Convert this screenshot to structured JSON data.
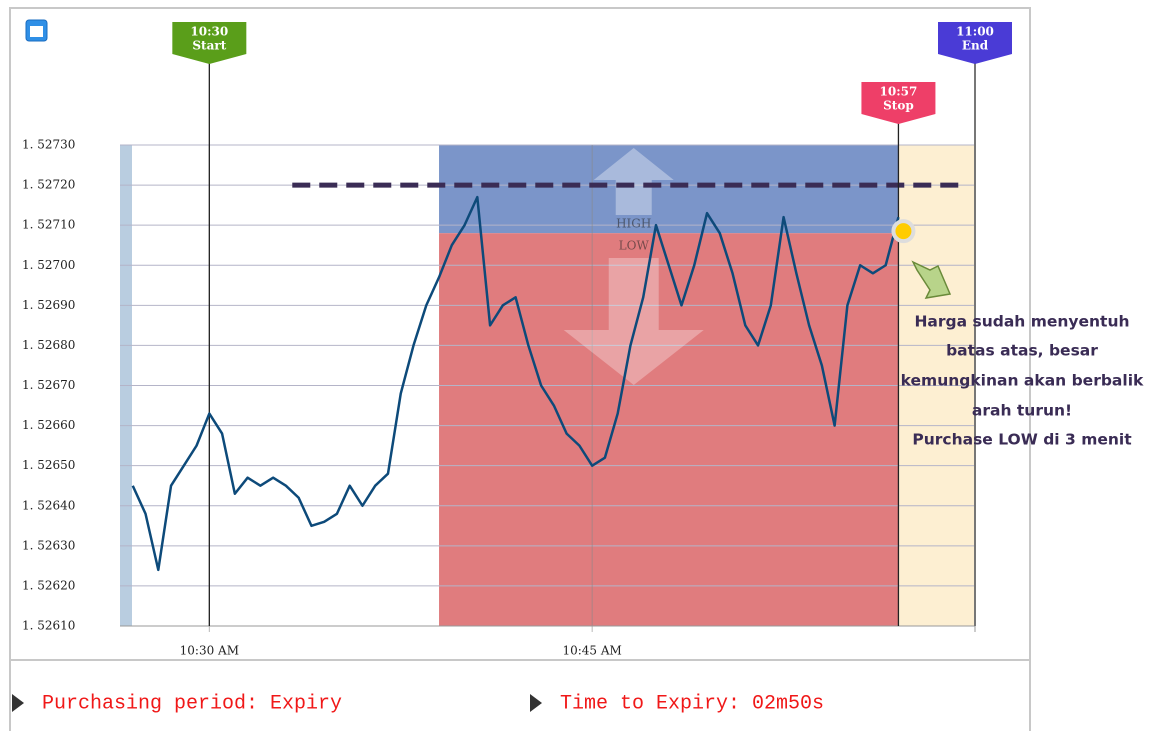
{
  "chart_data": {
    "type": "line",
    "x": [
      "10:27:00",
      "10:27:30",
      "10:28:00",
      "10:28:30",
      "10:29:00",
      "10:29:30",
      "10:30:00",
      "10:30:30",
      "10:31:00",
      "10:31:30",
      "10:32:00",
      "10:32:30",
      "10:33:00",
      "10:33:30",
      "10:34:00",
      "10:34:30",
      "10:35:00",
      "10:35:30",
      "10:36:00",
      "10:36:30",
      "10:37:00",
      "10:37:30",
      "10:38:00",
      "10:38:30",
      "10:39:00",
      "10:39:30",
      "10:40:00",
      "10:40:30",
      "10:41:00",
      "10:41:30",
      "10:42:00",
      "10:42:30",
      "10:43:00",
      "10:43:30",
      "10:44:00",
      "10:44:30",
      "10:45:00",
      "10:45:30",
      "10:46:00",
      "10:46:30",
      "10:47:00",
      "10:47:30",
      "10:48:00",
      "10:48:30",
      "10:49:00",
      "10:49:30",
      "10:50:00",
      "10:50:30",
      "10:51:00",
      "10:51:30",
      "10:52:00",
      "10:52:30",
      "10:53:00",
      "10:53:30",
      "10:54:00",
      "10:54:30",
      "10:55:00",
      "10:55:30",
      "10:56:00",
      "10:56:30",
      "10:57:00"
    ],
    "series": [
      {
        "color": "#0d4a7a",
        "values": [
          1.52645,
          1.52638,
          1.52624,
          1.52645,
          1.5265,
          1.52655,
          1.52663,
          1.52658,
          1.52643,
          1.52647,
          1.52645,
          1.52647,
          1.52645,
          1.52642,
          1.52635,
          1.52636,
          1.52638,
          1.52645,
          1.5264,
          1.52645,
          1.52648,
          1.52668,
          1.5268,
          1.5269,
          1.52697,
          1.52705,
          1.5271,
          1.52717,
          1.52685,
          1.5269,
          1.52692,
          1.5268,
          1.5267,
          1.52665,
          1.52658,
          1.52655,
          1.5265,
          1.52652,
          1.52663,
          1.5268,
          1.52692,
          1.5271,
          1.527,
          1.5269,
          1.527,
          1.52713,
          1.52708,
          1.52698,
          1.52685,
          1.5268,
          1.5269,
          1.52712,
          1.52698,
          1.52685,
          1.52675,
          1.5266,
          1.5269,
          1.527,
          1.52698,
          1.527,
          1.52712
        ]
      }
    ],
    "xlim": [
      "10:26:30",
      "11:00:00"
    ],
    "xticks": [
      {
        "value": "10:30:00",
        "label": "10:30 AM"
      },
      {
        "value": "10:45:00",
        "label": "10:45 AM"
      }
    ],
    "ylim": [
      1.5261,
      1.5273
    ],
    "yticks": [
      {
        "value": 1.5261,
        "label": "1. 52610"
      },
      {
        "value": 1.5262,
        "label": "1. 52620"
      },
      {
        "value": 1.5263,
        "label": "1. 52630"
      },
      {
        "value": 1.5264,
        "label": "1. 52640"
      },
      {
        "value": 1.5265,
        "label": "1. 52650"
      },
      {
        "value": 1.5266,
        "label": "1. 52660"
      },
      {
        "value": 1.5267,
        "label": "1. 52670"
      },
      {
        "value": 1.5268,
        "label": "1. 52680"
      },
      {
        "value": 1.5269,
        "label": "1. 52690"
      },
      {
        "value": 1.527,
        "label": "1. 52700"
      },
      {
        "value": 1.5271,
        "label": "1. 52710"
      },
      {
        "value": 1.5272,
        "label": "1. 52720"
      },
      {
        "value": 1.5273,
        "label": "1. 52730"
      }
    ],
    "grid": true,
    "zone_start": "10:39:00",
    "strike": 1.52708,
    "high_color": "#7b95c9",
    "low_color": "#e07c7e",
    "high_label": "HIGH",
    "low_label": "LOW",
    "target_level": 1.5272,
    "target_start": "10:33:15",
    "target_end": "10:59:30",
    "markers": [
      {
        "label": "10:30",
        "name": "Start",
        "color": "#5a9e1a"
      },
      {
        "label": "10:57",
        "name": "Stop",
        "color": "#ee3f68"
      },
      {
        "label": "11:00",
        "name": "End",
        "color": "#4a3bd6"
      }
    ],
    "annotation": [
      "Harga sudah menyentuh",
      "batas atas, besar",
      "kemungkinan akan berbalik",
      "arah turun!",
      "Purchase LOW di 3 menit"
    ]
  },
  "footer": {
    "period": "Purchasing period: Expiry",
    "expiry": "Time to Expiry: 02m50s"
  }
}
